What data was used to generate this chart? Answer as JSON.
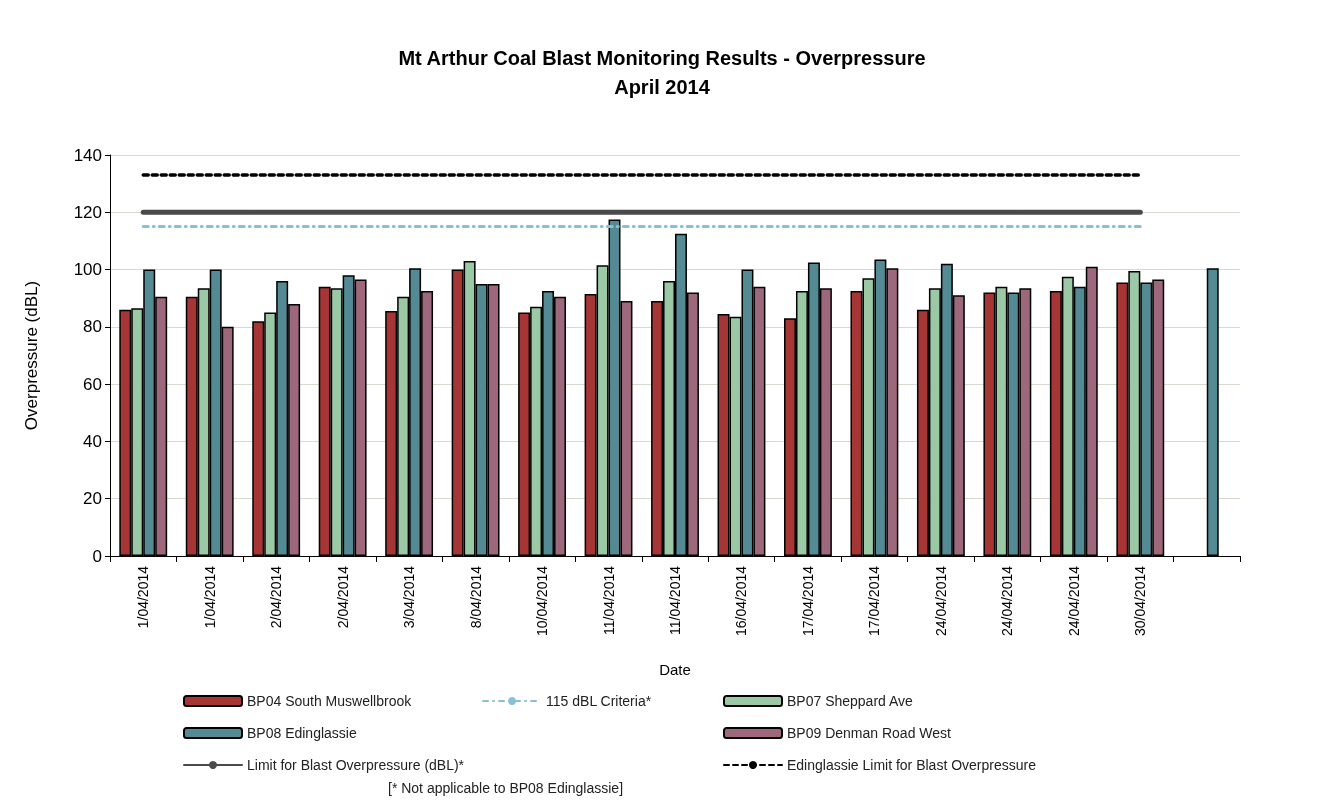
{
  "chart_data": {
    "type": "bar",
    "title": "Mt Arthur Coal Blast Monitoring Results - Overpressure",
    "subtitle": "April 2014",
    "xlabel": "Date",
    "ylabel": "Overpressure (dBL)",
    "categories": [
      "1/04/2014",
      "1/04/2014",
      "2/04/2014",
      "2/04/2014",
      "3/04/2014",
      "8/04/2014",
      "10/04/2014",
      "11/04/2014",
      "11/04/2014",
      "16/04/2014",
      "17/04/2014",
      "17/04/2014",
      "24/04/2014",
      "24/04/2014",
      "24/04/2014",
      "30/04/2014",
      null
    ],
    "series": [
      {
        "name": "BP04 South Muswellbrook",
        "color": "#a63535",
        "values": [
          86,
          90.5,
          82,
          94,
          85.5,
          100,
          85,
          91.5,
          89,
          84.5,
          83,
          92.5,
          86,
          92,
          92.5,
          95.5,
          null
        ]
      },
      {
        "name": "BP07 Sheppard Ave",
        "color": "#9bc9a6",
        "values": [
          86.5,
          93.5,
          85,
          93.5,
          90.5,
          103,
          87,
          101.5,
          96,
          83.5,
          92.5,
          97,
          93.5,
          94,
          97.5,
          99.5,
          null
        ]
      },
      {
        "name": "BP08 Edinglassie",
        "color": "#538a94",
        "values": [
          100,
          100,
          96,
          98,
          100.5,
          95,
          92.5,
          117.5,
          112.5,
          100,
          102.5,
          103.5,
          102,
          92,
          94,
          95.5,
          100.5
        ]
      },
      {
        "name": "BP09 Denman Road West",
        "color": "#9e687c",
        "values": [
          90.5,
          80,
          88,
          96.5,
          92.5,
          95,
          90.5,
          89,
          92,
          94,
          93.5,
          100.5,
          91,
          93.5,
          101,
          96.5,
          null
        ]
      },
      {
        "name": "Limit for Blast Overpressure (dBL)*",
        "type": "line",
        "color": "#4a4a4a",
        "line_style": "solid",
        "values": [
          120,
          120,
          120,
          120,
          120,
          120,
          120,
          120,
          120,
          120,
          120,
          120,
          120,
          120,
          120,
          120,
          null
        ]
      },
      {
        "name": "Edinglassie Limit for Blast Overpressure",
        "type": "line",
        "color": "#000000",
        "line_style": "dashed",
        "values": [
          133,
          133,
          133,
          133,
          133,
          133,
          133,
          133,
          133,
          133,
          133,
          133,
          133,
          133,
          133,
          133,
          null
        ]
      },
      {
        "name": "115 dBL Criteria*",
        "type": "line",
        "color": "#8bbfd6",
        "line_style": "dashdot",
        "values": [
          115,
          115,
          115,
          115,
          115,
          115,
          115,
          115,
          115,
          115,
          115,
          115,
          115,
          115,
          115,
          115,
          null
        ]
      }
    ],
    "ylim": [
      0,
      140
    ],
    "yticks": [
      0,
      20,
      40,
      60,
      80,
      100,
      120,
      140
    ],
    "grid": "y",
    "legend": "bottom",
    "marker": "none",
    "annotations": [
      "[* Not applicable to BP08 Edinglassie]"
    ]
  }
}
